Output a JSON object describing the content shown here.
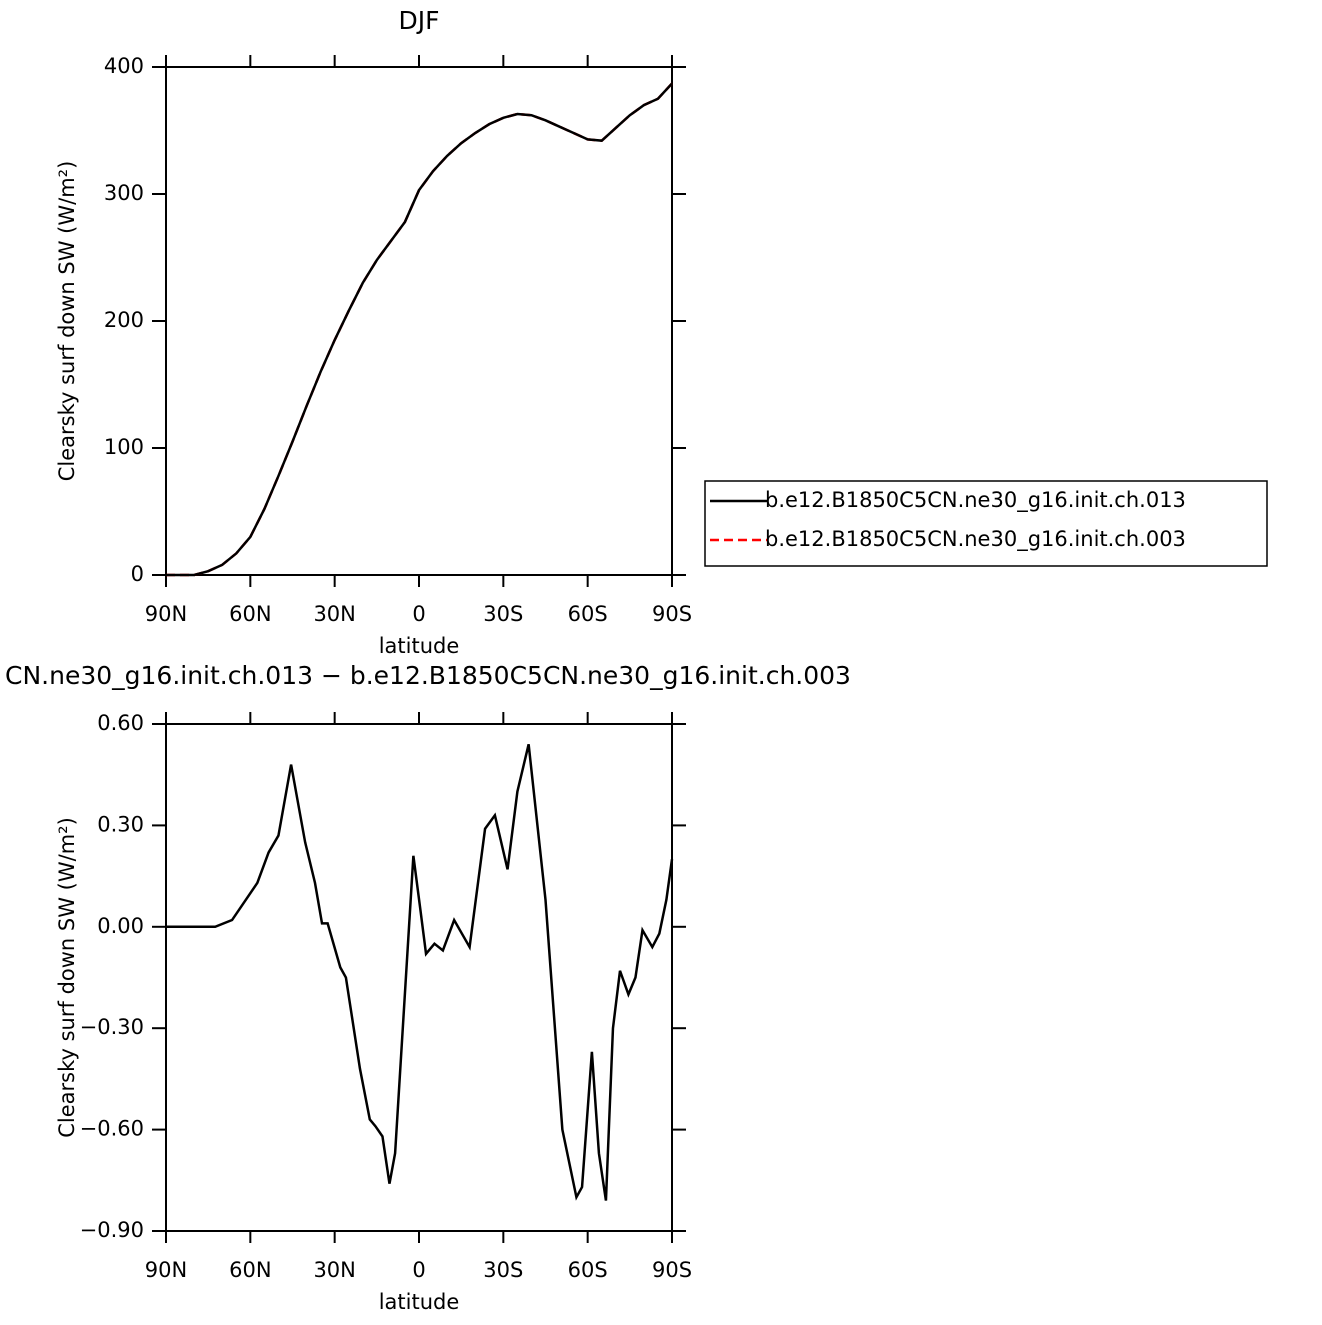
{
  "chart_data": [
    {
      "type": "line",
      "title": "DJF",
      "xlabel": "latitude",
      "ylabel": "Clearsky surf down SW (W/m²)",
      "x": [
        90,
        85,
        80,
        75,
        70,
        65,
        60,
        55,
        50,
        45,
        40,
        35,
        30,
        25,
        20,
        15,
        10,
        5,
        0,
        -5,
        -10,
        -15,
        -20,
        -25,
        -30,
        -35,
        -40,
        -45,
        -50,
        -55,
        -60,
        -65,
        -70,
        -75,
        -80,
        -85,
        -90
      ],
      "series": [
        {
          "name": "b.e12.B1850C5CN.ne30_g16.init.ch.003",
          "color": "#ff0000",
          "dash": true,
          "values": [
            0,
            0,
            0,
            3,
            8,
            17,
            30,
            52,
            78,
            105,
            133,
            160,
            185,
            208,
            230,
            248,
            263,
            278,
            303,
            318,
            330,
            340,
            348,
            355,
            360,
            363,
            362,
            358,
            353,
            348,
            343,
            342,
            352,
            362,
            370,
            375,
            387
          ]
        },
        {
          "name": "b.e12.B1850C5CN.ne30_g16.init.ch.013",
          "color": "#000000",
          "dash": false,
          "values": [
            0,
            0,
            0,
            3,
            8,
            17,
            30,
            52,
            78,
            105,
            133,
            160,
            185,
            208,
            230,
            248,
            263,
            278,
            303,
            318,
            330,
            340,
            348,
            355,
            360,
            363,
            362,
            358,
            353,
            348,
            343,
            342,
            352,
            362,
            370,
            375,
            387
          ]
        }
      ],
      "xlim": [
        90,
        -90
      ],
      "xticks": [
        {
          "value": 90,
          "label": "90N"
        },
        {
          "value": 60,
          "label": "60N"
        },
        {
          "value": 30,
          "label": "30N"
        },
        0,
        {
          "value": -30,
          "label": "30S"
        },
        {
          "value": -60,
          "label": "60S"
        },
        {
          "value": -90,
          "label": "90S"
        }
      ],
      "ylim": [
        0,
        400
      ],
      "yticks": [
        0,
        100,
        200,
        300,
        400
      ],
      "legend": "right"
    },
    {
      "type": "line",
      "title": "CN.ne30_g16.init.ch.013 − b.e12.B1850C5CN.ne30_g16.init.ch.003",
      "xlabel": "latitude",
      "ylabel": "Clearsky surf down SW (W/m²)",
      "x": [
        90,
        72.5,
        66.5,
        57.5,
        53.5,
        50,
        45.5,
        40.5,
        37,
        34.5,
        32.5,
        28,
        26,
        21,
        17.5,
        15.5,
        13,
        10.5,
        8.5,
        2,
        -0.5,
        -2.5,
        -5.5,
        -8.5,
        -12.5,
        -18,
        -23.5,
        -27,
        -31.5,
        -35,
        -39,
        -45,
        -51,
        -56,
        -58,
        -61.5,
        -64,
        -66.5,
        -69,
        -71.5,
        -74.5,
        -77,
        -79.5,
        -83,
        -85.5,
        -88,
        -90
      ],
      "series": [
        {
          "name": "",
          "color": "#000000",
          "dash": false,
          "values": [
            0,
            0,
            0.02,
            0.13,
            0.22,
            0.27,
            0.48,
            0.25,
            0.13,
            0.01,
            0.01,
            -0.12,
            -0.15,
            -0.42,
            -0.57,
            -0.59,
            -0.62,
            -0.76,
            -0.67,
            0.21,
            0.05,
            -0.08,
            -0.05,
            -0.07,
            0.02,
            -0.06,
            0.29,
            0.33,
            0.17,
            0.4,
            0.54,
            0.08,
            -0.6,
            -0.8,
            -0.77,
            -0.37,
            -0.67,
            -0.81,
            -0.3,
            -0.13,
            -0.2,
            -0.15,
            -0.01,
            -0.06,
            -0.02,
            0.08,
            0.2
          ]
        }
      ],
      "xlim": [
        90,
        -90
      ],
      "xticks": [
        {
          "value": 90,
          "label": "90N"
        },
        {
          "value": 60,
          "label": "60N"
        },
        {
          "value": 30,
          "label": "30N"
        },
        0,
        {
          "value": -30,
          "label": "30S"
        },
        {
          "value": -60,
          "label": "60S"
        },
        {
          "value": -90,
          "label": "90S"
        }
      ],
      "ylim": [
        -0.9,
        0.6
      ],
      "yticks": [
        {
          "value": 0.6,
          "label": "0.60"
        },
        {
          "value": 0.3,
          "label": "0.30"
        },
        {
          "value": 0,
          "label": "0.00"
        },
        {
          "value": -0.3,
          "label": "−0.30"
        },
        {
          "value": -0.6,
          "label": "−0.60"
        },
        {
          "value": -0.9,
          "label": "−0.90"
        }
      ]
    }
  ]
}
